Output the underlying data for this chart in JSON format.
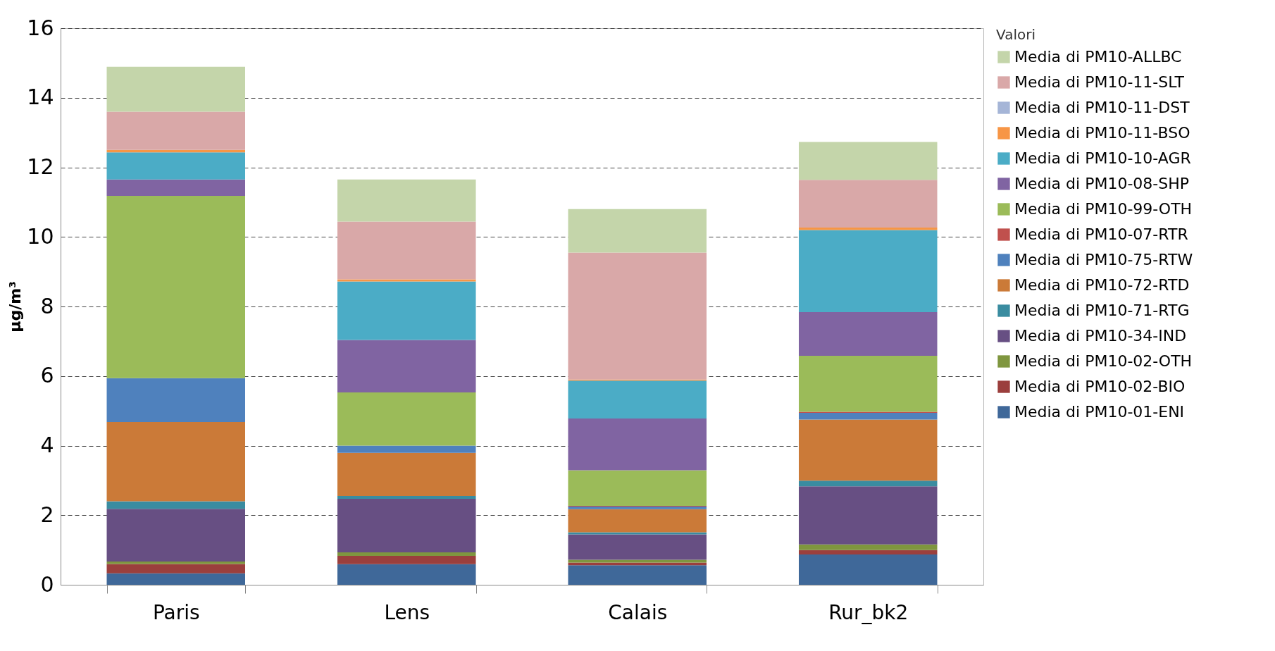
{
  "chart_data": {
    "type": "bar",
    "stacked": true,
    "ylabel": "µg/m³",
    "legend_title": "Valori",
    "legend": "right",
    "grid": "y",
    "categories": [
      "Paris",
      "Lens",
      "Calais",
      "Rur_bk2"
    ],
    "ylim": [
      0,
      16
    ],
    "yticks": [
      0,
      2,
      4,
      6,
      8,
      10,
      12,
      14,
      16
    ],
    "series": [
      {
        "name": "Media di PM10-01-ENI",
        "color": "#3f6899",
        "values": [
          0.33,
          0.59,
          0.56,
          0.87
        ]
      },
      {
        "name": "Media di PM10-02-BIO",
        "color": "#9b3f3d",
        "values": [
          0.27,
          0.24,
          0.08,
          0.13
        ]
      },
      {
        "name": "Media di PM10-02-OTH",
        "color": "#7f963f",
        "values": [
          0.07,
          0.1,
          0.08,
          0.16
        ]
      },
      {
        "name": "Media di PM10-34-IND",
        "color": "#674f83",
        "values": [
          1.51,
          1.54,
          0.73,
          1.67
        ]
      },
      {
        "name": "Media di PM10-71-RTG",
        "color": "#3a8ca0",
        "values": [
          0.22,
          0.08,
          0.06,
          0.16
        ]
      },
      {
        "name": "Media di PM10-72-RTD",
        "color": "#cb7a38",
        "values": [
          2.28,
          1.24,
          0.66,
          1.76
        ]
      },
      {
        "name": "Media di PM10-75-RTW",
        "color": "#4f81bd",
        "values": [
          1.26,
          0.21,
          0.08,
          0.19
        ]
      },
      {
        "name": "Media di PM10-07-RTR",
        "color": "#c0504d",
        "values": [
          0,
          0,
          0.02,
          0.03
        ]
      },
      {
        "name": "Media di PM10-99-OTH",
        "color": "#9bbb59",
        "values": [
          5.24,
          1.53,
          1.02,
          1.61
        ]
      },
      {
        "name": "Media di PM10-08-SHP",
        "color": "#8064a2",
        "values": [
          0.47,
          1.51,
          1.49,
          1.26
        ]
      },
      {
        "name": "Media di PM10-10-AGR",
        "color": "#4bacc6",
        "values": [
          0.78,
          1.68,
          1.09,
          2.36
        ]
      },
      {
        "name": "Media di PM10-11-BSO",
        "color": "#f79646",
        "values": [
          0.07,
          0.06,
          0.03,
          0.07
        ]
      },
      {
        "name": "Media di PM10-11-DST",
        "color": "#a5b5d7",
        "values": [
          0,
          0,
          0,
          0
        ]
      },
      {
        "name": "Media di PM10-11-SLT",
        "color": "#d9a8a8",
        "values": [
          1.1,
          1.66,
          3.65,
          1.37
        ]
      },
      {
        "name": "Media di PM10-ALLBC",
        "color": "#c4d5aa",
        "values": [
          1.29,
          1.21,
          1.25,
          1.09
        ]
      }
    ]
  }
}
